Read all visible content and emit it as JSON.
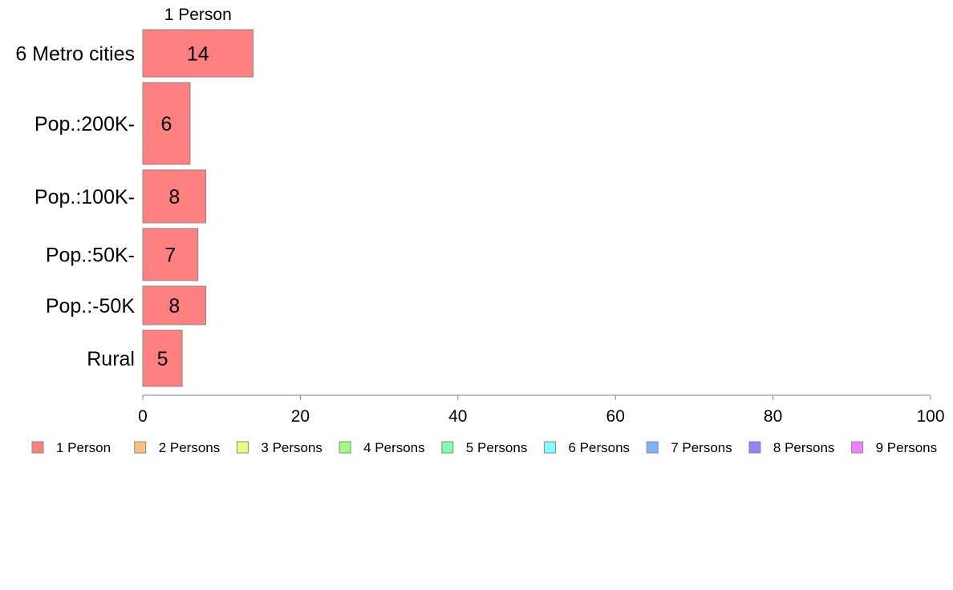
{
  "chart_data": {
    "type": "bar",
    "orientation": "horizontal",
    "stacked": true,
    "categories": [
      "6 Metro cities",
      "Pop.:200K-",
      "Pop.:100K-",
      "Pop.:50K-",
      "Pop.:-50K",
      "Rural"
    ],
    "series": [
      {
        "name": "1 Person",
        "color": "#ff8080",
        "values": [
          14,
          6,
          8,
          7,
          8,
          5
        ]
      }
    ],
    "segment_title": "1 Person",
    "bar_labels": [
      "14",
      "6",
      "8",
      "7",
      "8",
      "5"
    ],
    "xlim": [
      0,
      100
    ],
    "xticks": [
      0,
      20,
      40,
      60,
      80,
      100
    ],
    "grid": false,
    "legend_position": "bottom",
    "legend": [
      {
        "label": "1 Person",
        "color": "#ff8080"
      },
      {
        "label": "2 Persons",
        "color": "#ffbf80"
      },
      {
        "label": "3 Persons",
        "color": "#eeff80"
      },
      {
        "label": "4 Persons",
        "color": "#a0ff80"
      },
      {
        "label": "5 Persons",
        "color": "#80ffb0"
      },
      {
        "label": "6 Persons",
        "color": "#80ffff"
      },
      {
        "label": "7 Persons",
        "color": "#80b0ff"
      },
      {
        "label": "8 Persons",
        "color": "#9a80ff"
      },
      {
        "label": "9 Persons",
        "color": "#ee80ff"
      }
    ]
  }
}
